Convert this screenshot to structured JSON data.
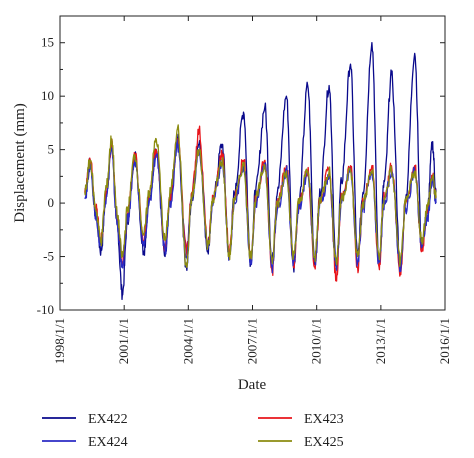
{
  "chart_data": {
    "type": "line",
    "xlabel": "Date",
    "ylabel": "Displacement (mm)",
    "xlim": [
      "1998-01-01",
      "2016-01-01"
    ],
    "ylim": [
      -10,
      17.5
    ],
    "x_ticks": [
      "1998/1/1",
      "2001/1/1",
      "2004/1/1",
      "2007/1/1",
      "2010/1/1",
      "2013/1/1",
      "2016/1/1"
    ],
    "y_ticks": [
      -10,
      -5,
      0,
      5,
      10,
      15
    ],
    "grid": false,
    "legend_position": "bottom",
    "series": [
      {
        "name": "EX422",
        "color": "#0a0a8c",
        "points": [
          [
            "1999-03-01",
            0.8
          ],
          [
            "1999-06-01",
            4.0
          ],
          [
            "1999-09-01",
            -1.0
          ],
          [
            "1999-12-01",
            -4.5
          ],
          [
            "2000-03-01",
            1.0
          ],
          [
            "2000-06-01",
            5.5
          ],
          [
            "2000-09-01",
            -2.0
          ],
          [
            "2000-12-01",
            -8.5
          ],
          [
            "2001-03-01",
            -1.5
          ],
          [
            "2001-07-01",
            4.5
          ],
          [
            "2001-12-01",
            -4.5
          ],
          [
            "2002-03-01",
            0.0
          ],
          [
            "2002-07-01",
            5.0
          ],
          [
            "2002-12-01",
            -5.0
          ],
          [
            "2003-03-01",
            0.5
          ],
          [
            "2003-07-01",
            6.0
          ],
          [
            "2003-12-01",
            -6.0
          ],
          [
            "2004-03-01",
            0.5
          ],
          [
            "2004-07-01",
            5.5
          ],
          [
            "2004-12-01",
            -4.5
          ],
          [
            "2005-03-01",
            0.5
          ],
          [
            "2005-08-01",
            5.5
          ],
          [
            "2005-12-01",
            -5.0
          ],
          [
            "2006-03-01",
            1.0
          ],
          [
            "2006-08-01",
            8.5
          ],
          [
            "2006-12-01",
            -5.5
          ],
          [
            "2007-03-01",
            1.5
          ],
          [
            "2007-08-01",
            9.0
          ],
          [
            "2007-12-01",
            -5.5
          ],
          [
            "2008-03-01",
            1.0
          ],
          [
            "2008-08-01",
            10.0
          ],
          [
            "2008-12-01",
            -6.0
          ],
          [
            "2009-03-01",
            0.0
          ],
          [
            "2009-08-01",
            11.0
          ],
          [
            "2009-12-01",
            -5.5
          ],
          [
            "2010-03-01",
            1.0
          ],
          [
            "2010-08-01",
            11.0
          ],
          [
            "2010-12-01",
            -6.0
          ],
          [
            "2011-03-01",
            2.0
          ],
          [
            "2011-08-01",
            13.0
          ],
          [
            "2011-12-01",
            -5.0
          ],
          [
            "2012-03-01",
            1.0
          ],
          [
            "2012-08-01",
            15.0
          ],
          [
            "2012-12-01",
            -5.5
          ],
          [
            "2013-03-01",
            2.0
          ],
          [
            "2013-07-01",
            12.0
          ],
          [
            "2013-12-01",
            -6.0
          ],
          [
            "2014-03-01",
            0.5
          ],
          [
            "2014-08-01",
            14.0
          ],
          [
            "2014-12-01",
            -4.0
          ],
          [
            "2015-03-01",
            -1.0
          ],
          [
            "2015-06-01",
            5.5
          ],
          [
            "2015-08-01",
            1.0
          ]
        ]
      },
      {
        "name": "EX423",
        "color": "#e8151b",
        "points": [
          [
            "1999-03-01",
            1.0
          ],
          [
            "1999-06-01",
            4.0
          ],
          [
            "1999-09-01",
            -0.5
          ],
          [
            "1999-12-01",
            -3.5
          ],
          [
            "2000-03-01",
            1.0
          ],
          [
            "2000-06-01",
            5.5
          ],
          [
            "2000-09-01",
            -1.5
          ],
          [
            "2000-12-01",
            -5.5
          ],
          [
            "2001-03-01",
            -1.0
          ],
          [
            "2001-07-01",
            4.5
          ],
          [
            "2001-12-01",
            -3.5
          ],
          [
            "2002-03-01",
            0.5
          ],
          [
            "2002-07-01",
            5.0
          ],
          [
            "2002-12-01",
            -4.0
          ],
          [
            "2003-03-01",
            0.5
          ],
          [
            "2003-07-01",
            6.0
          ],
          [
            "2003-12-01",
            -4.5
          ],
          [
            "2004-03-01",
            1.0
          ],
          [
            "2004-07-01",
            6.8
          ],
          [
            "2004-12-01",
            -4.0
          ],
          [
            "2005-03-01",
            0.5
          ],
          [
            "2005-08-01",
            4.5
          ],
          [
            "2005-12-01",
            -4.5
          ],
          [
            "2006-03-01",
            0.5
          ],
          [
            "2006-08-01",
            4.0
          ],
          [
            "2006-12-01",
            -5.5
          ],
          [
            "2007-03-01",
            0.5
          ],
          [
            "2007-08-01",
            4.0
          ],
          [
            "2007-12-01",
            -6.5
          ],
          [
            "2008-03-01",
            0.0
          ],
          [
            "2008-08-01",
            3.5
          ],
          [
            "2008-12-01",
            -6.0
          ],
          [
            "2009-03-01",
            0.0
          ],
          [
            "2009-08-01",
            3.0
          ],
          [
            "2009-12-01",
            -6.0
          ],
          [
            "2010-03-01",
            0.5
          ],
          [
            "2010-08-01",
            3.0
          ],
          [
            "2010-12-01",
            -7.0
          ],
          [
            "2011-03-01",
            0.5
          ],
          [
            "2011-08-01",
            3.5
          ],
          [
            "2011-12-01",
            -6.0
          ],
          [
            "2012-03-01",
            0.0
          ],
          [
            "2012-08-01",
            3.5
          ],
          [
            "2012-12-01",
            -6.0
          ],
          [
            "2013-03-01",
            0.5
          ],
          [
            "2013-07-01",
            3.5
          ],
          [
            "2013-12-01",
            -6.5
          ],
          [
            "2014-03-01",
            0.0
          ],
          [
            "2014-08-01",
            3.5
          ],
          [
            "2014-12-01",
            -4.5
          ],
          [
            "2015-03-01",
            -1.0
          ],
          [
            "2015-06-01",
            2.5
          ],
          [
            "2015-08-01",
            0.5
          ]
        ]
      },
      {
        "name": "EX424",
        "color": "#2b2bc4",
        "points": [
          [
            "1999-03-01",
            0.5
          ],
          [
            "1999-06-01",
            3.5
          ],
          [
            "1999-09-01",
            -1.0
          ],
          [
            "1999-12-01",
            -4.0
          ],
          [
            "2000-03-01",
            0.5
          ],
          [
            "2000-06-01",
            5.0
          ],
          [
            "2000-09-01",
            -2.0
          ],
          [
            "2000-12-01",
            -6.0
          ],
          [
            "2001-03-01",
            -1.5
          ],
          [
            "2001-07-01",
            4.0
          ],
          [
            "2001-12-01",
            -4.0
          ],
          [
            "2002-03-01",
            0.0
          ],
          [
            "2002-07-01",
            4.5
          ],
          [
            "2002-12-01",
            -4.5
          ],
          [
            "2003-03-01",
            0.0
          ],
          [
            "2003-07-01",
            5.5
          ],
          [
            "2003-12-01",
            -5.0
          ],
          [
            "2004-03-01",
            0.5
          ],
          [
            "2004-07-01",
            5.0
          ],
          [
            "2004-12-01",
            -4.0
          ],
          [
            "2005-03-01",
            0.0
          ],
          [
            "2005-08-01",
            4.0
          ],
          [
            "2005-12-01",
            -5.0
          ],
          [
            "2006-03-01",
            0.0
          ],
          [
            "2006-08-01",
            3.5
          ],
          [
            "2006-12-01",
            -5.5
          ],
          [
            "2007-03-01",
            0.0
          ],
          [
            "2007-08-01",
            3.5
          ],
          [
            "2007-12-01",
            -6.0
          ],
          [
            "2008-03-01",
            -0.5
          ],
          [
            "2008-08-01",
            3.0
          ],
          [
            "2008-12-01",
            -5.5
          ],
          [
            "2009-03-01",
            -0.5
          ],
          [
            "2009-08-01",
            3.0
          ],
          [
            "2009-12-01",
            -5.5
          ],
          [
            "2010-03-01",
            0.0
          ],
          [
            "2010-08-01",
            2.5
          ],
          [
            "2010-12-01",
            -6.0
          ],
          [
            "2011-03-01",
            0.0
          ],
          [
            "2011-08-01",
            3.0
          ],
          [
            "2011-12-01",
            -5.5
          ],
          [
            "2012-03-01",
            -0.5
          ],
          [
            "2012-08-01",
            3.0
          ],
          [
            "2012-12-01",
            -5.5
          ],
          [
            "2013-03-01",
            0.0
          ],
          [
            "2013-07-01",
            3.0
          ],
          [
            "2013-12-01",
            -6.0
          ],
          [
            "2014-03-01",
            -0.5
          ],
          [
            "2014-08-01",
            3.0
          ],
          [
            "2014-12-01",
            -4.0
          ],
          [
            "2015-03-01",
            -1.5
          ],
          [
            "2015-06-01",
            2.0
          ],
          [
            "2015-08-01",
            0.0
          ]
        ]
      },
      {
        "name": "EX425",
        "color": "#8c8c10",
        "points": [
          [
            "1999-03-01",
            1.0
          ],
          [
            "1999-06-01",
            4.0
          ],
          [
            "1999-09-01",
            -0.5
          ],
          [
            "1999-12-01",
            -3.5
          ],
          [
            "2000-03-01",
            1.5
          ],
          [
            "2000-06-01",
            6.0
          ],
          [
            "2000-09-01",
            -1.0
          ],
          [
            "2000-12-01",
            -5.0
          ],
          [
            "2001-03-01",
            -0.5
          ],
          [
            "2001-07-01",
            4.5
          ],
          [
            "2001-12-01",
            -3.0
          ],
          [
            "2002-03-01",
            1.0
          ],
          [
            "2002-07-01",
            6.0
          ],
          [
            "2002-12-01",
            -3.5
          ],
          [
            "2003-03-01",
            1.0
          ],
          [
            "2003-07-01",
            7.0
          ],
          [
            "2003-12-01",
            -6.0
          ],
          [
            "2004-03-01",
            0.5
          ],
          [
            "2004-07-01",
            5.0
          ],
          [
            "2004-12-01",
            -4.0
          ],
          [
            "2005-03-01",
            0.5
          ],
          [
            "2005-08-01",
            4.0
          ],
          [
            "2005-12-01",
            -5.0
          ],
          [
            "2006-03-01",
            0.5
          ],
          [
            "2006-08-01",
            3.5
          ],
          [
            "2006-12-01",
            -5.0
          ],
          [
            "2007-03-01",
            0.5
          ],
          [
            "2007-08-01",
            3.5
          ],
          [
            "2007-12-01",
            -5.5
          ],
          [
            "2008-03-01",
            0.0
          ],
          [
            "2008-08-01",
            3.0
          ],
          [
            "2008-12-01",
            -5.0
          ],
          [
            "2009-03-01",
            0.0
          ],
          [
            "2009-08-01",
            3.0
          ],
          [
            "2009-12-01",
            -5.0
          ],
          [
            "2010-03-01",
            0.5
          ],
          [
            "2010-08-01",
            3.0
          ],
          [
            "2010-12-01",
            -5.5
          ],
          [
            "2011-03-01",
            0.5
          ],
          [
            "2011-08-01",
            3.0
          ],
          [
            "2011-12-01",
            -5.0
          ],
          [
            "2012-03-01",
            0.0
          ],
          [
            "2012-08-01",
            3.0
          ],
          [
            "2012-12-01",
            -5.0
          ],
          [
            "2013-03-01",
            0.5
          ],
          [
            "2013-07-01",
            3.0
          ],
          [
            "2013-12-01",
            -5.5
          ],
          [
            "2014-03-01",
            0.0
          ],
          [
            "2014-08-01",
            3.0
          ],
          [
            "2014-12-01",
            -3.5
          ],
          [
            "2015-03-01",
            -0.5
          ],
          [
            "2015-06-01",
            2.5
          ],
          [
            "2015-08-01",
            0.5
          ]
        ]
      }
    ]
  }
}
